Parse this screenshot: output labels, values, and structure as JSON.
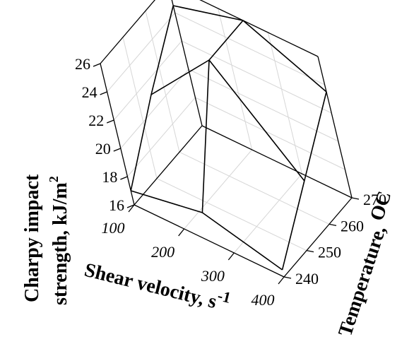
{
  "chart_data": {
    "type": "surface",
    "x_axis": {
      "label": "Shear velocity, s",
      "label_sup": "-1",
      "ticks": [
        "100",
        "200",
        "300",
        "400"
      ],
      "values": [
        100,
        200,
        300,
        400
      ]
    },
    "y_axis": {
      "label": "Temperature, ",
      "label_unit": "OC",
      "ticks": [
        "240",
        "250",
        "260",
        "270"
      ],
      "values": [
        240,
        250,
        260,
        270
      ]
    },
    "z_axis": {
      "label_line1": "Charpy impact",
      "label_line2": "strength, kJ/m",
      "label_sup": "2",
      "ticks": [
        "16",
        "18",
        "20",
        "22",
        "24",
        "26"
      ],
      "range": [
        16,
        26
      ]
    },
    "surface": {
      "shear_velocity": [
        100,
        250,
        400
      ],
      "temperature": [
        240,
        255,
        270
      ],
      "strength": [
        [
          17.0,
          21.0,
          24.5
        ],
        [
          18.0,
          26.0,
          26.0
        ],
        [
          16.5,
          20.0,
          23.5
        ]
      ]
    }
  }
}
